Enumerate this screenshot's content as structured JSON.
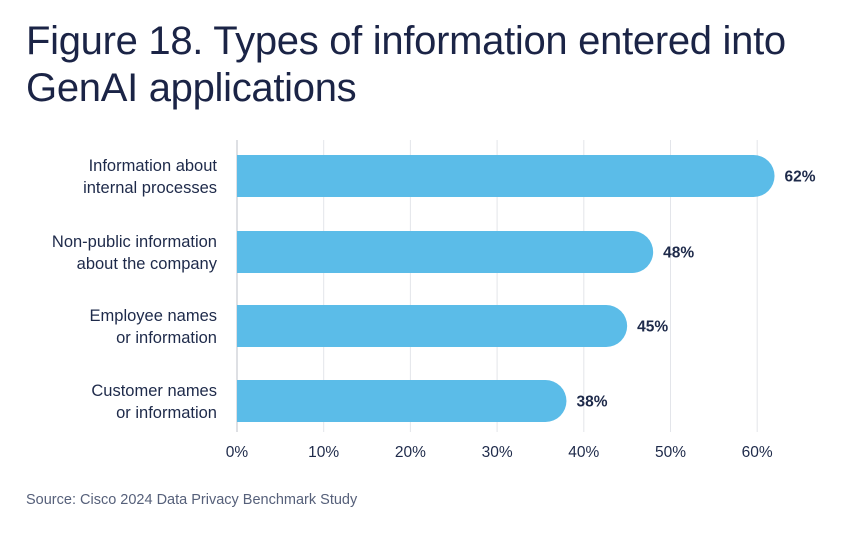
{
  "title_lines": [
    "Figure 18. Types of information entered into",
    "GenAI applications"
  ],
  "source": "Source: Cisco 2024 Data Privacy Benchmark Study",
  "colors": {
    "bar": "#5bbce8",
    "grid": "#e3e5ea",
    "axis": "#c7cbd3",
    "label": "#1e2a4a",
    "title": "#1b2446"
  },
  "chart_data": {
    "type": "bar",
    "orientation": "horizontal",
    "categories": [
      [
        "Information about",
        "internal processes"
      ],
      [
        "Non-public information",
        "about the company"
      ],
      [
        "Employee names",
        "or information"
      ],
      [
        "Customer names",
        "or information"
      ]
    ],
    "values": [
      62,
      48,
      45,
      38
    ],
    "value_labels": [
      "62%",
      "48%",
      "45%",
      "38%"
    ],
    "xlim": [
      0,
      60
    ],
    "xticks": [
      "0%",
      "10%",
      "20%",
      "30%",
      "40%",
      "50%",
      "60%"
    ],
    "grid": true,
    "xlabel": "",
    "ylabel": ""
  }
}
